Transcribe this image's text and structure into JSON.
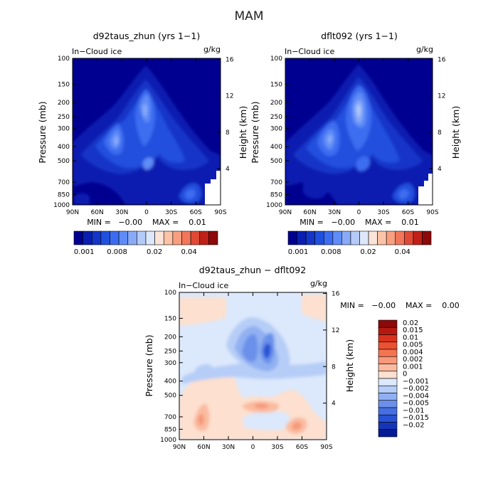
{
  "suptitle": "MAM",
  "panels": [
    {
      "title": "d92taus_zhun (yrs 1−1)",
      "left_label": "In−Cloud ice",
      "right_label": "g/kg",
      "ylabel": "Pressure (mb)",
      "y2label": "Height (km)",
      "minmax": "MIN =   −0.00    MAX =    0.01"
    },
    {
      "title": "dflt092 (yrs 1−1)",
      "left_label": "In−Cloud ice",
      "right_label": "g/kg",
      "ylabel": "Pressure (mb)",
      "y2label": "Height (km)",
      "minmax": "MIN =   −0.00    MAX =    0.01"
    },
    {
      "title": "d92taus_zhun − dflt092",
      "left_label": "In−Cloud ice",
      "right_label": "g/kg",
      "ylabel": "Pressure (mb)",
      "y2label": "Height (km)",
      "minmax": "MIN =   −0.00    MAX =    0.00"
    }
  ],
  "chart_data": [
    {
      "type": "heatmap",
      "title": "d92taus_zhun (yrs 1−1)",
      "x_ticks": [
        "90N",
        "60N",
        "30N",
        "0",
        "30S",
        "60S",
        "90S"
      ],
      "y_ticks": [
        "100",
        "150",
        "200",
        "250",
        "300",
        "400",
        "500",
        "700",
        "850",
        "1000"
      ],
      "y2_ticks": [
        "16",
        "12",
        "8",
        "4"
      ],
      "xlabel": "",
      "ylabel": "Pressure (mb)",
      "y2label": "Height (km)",
      "y_scale": "log",
      "ylim": [
        1000,
        100
      ],
      "min": -0.0,
      "max": 0.01,
      "units": "g/kg",
      "colorbar_labels": [
        "0.001",
        "0.008",
        "0.02",
        "0.04"
      ],
      "colors": [
        "#000090",
        "#0a1fb0",
        "#1435c8",
        "#2050de",
        "#3c6df0",
        "#5f8cf7",
        "#88aaf8",
        "#b4cbf8",
        "#dde8fb",
        "#fde4d8",
        "#fcc3a7",
        "#f89f80",
        "#f2775a",
        "#e04a35",
        "#c02018",
        "#8c0a0a"
      ]
    },
    {
      "type": "heatmap",
      "title": "dflt092 (yrs 1−1)",
      "x_ticks": [
        "90N",
        "60N",
        "30N",
        "0",
        "30S",
        "60S",
        "90S"
      ],
      "y_ticks": [
        "100",
        "150",
        "200",
        "250",
        "300",
        "400",
        "500",
        "700",
        "850",
        "1000"
      ],
      "y2_ticks": [
        "16",
        "12",
        "8",
        "4"
      ],
      "xlabel": "",
      "ylabel": "Pressure (mb)",
      "y2label": "Height (km)",
      "y_scale": "log",
      "ylim": [
        1000,
        100
      ],
      "min": -0.0,
      "max": 0.01,
      "units": "g/kg",
      "colorbar_labels": [
        "0.001",
        "0.008",
        "0.02",
        "0.04"
      ],
      "colors": [
        "#000090",
        "#0a1fb0",
        "#1435c8",
        "#2050de",
        "#3c6df0",
        "#5f8cf7",
        "#88aaf8",
        "#b4cbf8",
        "#dde8fb",
        "#fde4d8",
        "#fcc3a7",
        "#f89f80",
        "#f2775a",
        "#e04a35",
        "#c02018",
        "#8c0a0a"
      ]
    },
    {
      "type": "heatmap",
      "title": "d92taus_zhun − dflt092",
      "x_ticks": [
        "90N",
        "60N",
        "30N",
        "0",
        "30S",
        "60S",
        "90S"
      ],
      "y_ticks": [
        "100",
        "150",
        "200",
        "250",
        "300",
        "400",
        "500",
        "700",
        "850",
        "1000"
      ],
      "y2_ticks": [
        "16",
        "12",
        "8",
        "4"
      ],
      "xlabel": "",
      "ylabel": "Pressure (mb)",
      "y2label": "Height (km)",
      "y_scale": "log",
      "ylim": [
        1000,
        100
      ],
      "min": -0.0,
      "max": 0.0,
      "units": "g/kg",
      "colorbar_labels": [
        "0.02",
        "0.015",
        "0.01",
        "0.005",
        "0.004",
        "0.002",
        "0.001",
        "0",
        "−0.001",
        "−0.002",
        "−0.004",
        "−0.005",
        "−0.01",
        "−0.015",
        "−0.02"
      ],
      "colors": [
        "#8c0a0a",
        "#b8190f",
        "#d9321e",
        "#ec5132",
        "#f47452",
        "#f7997a",
        "#fabba0",
        "#fde0cf",
        "#dce8fb",
        "#b6cdf7",
        "#90b0f1",
        "#6a90ea",
        "#456fe2",
        "#2752d3",
        "#1535b8",
        "#051b96"
      ]
    }
  ]
}
